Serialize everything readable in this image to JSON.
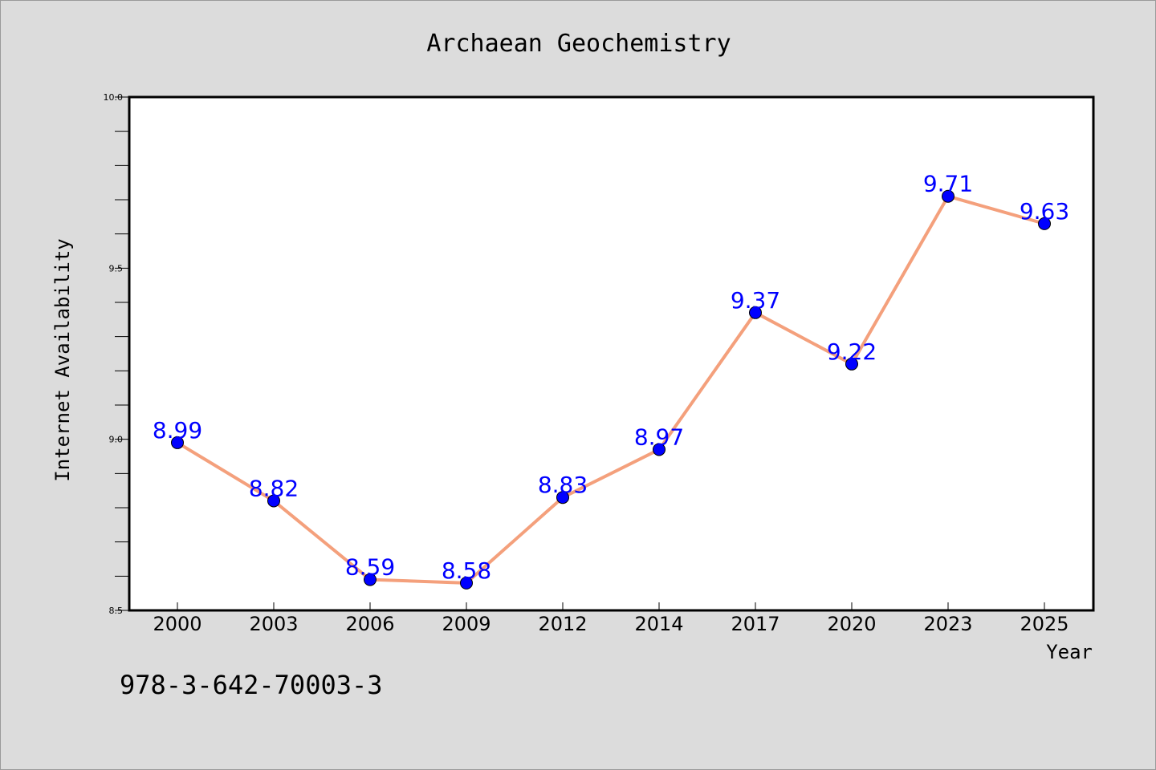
{
  "chart_data": {
    "type": "line",
    "title": "Archaean Geochemistry",
    "xlabel": "Year",
    "ylabel": "Internet Availability",
    "categories": [
      "2000",
      "2003",
      "2006",
      "2009",
      "2012",
      "2014",
      "2017",
      "2020",
      "2023",
      "2025"
    ],
    "series": [
      {
        "values": [
          8.99,
          8.82,
          8.59,
          8.58,
          8.83,
          8.97,
          9.37,
          9.22,
          9.71,
          9.63
        ],
        "line_color": "#f4a07c",
        "marker_color": "#0000ff"
      }
    ],
    "data_labels": [
      "8.99",
      "8.82",
      "8.59",
      "8.58",
      "8.83",
      "8.97",
      "9.37",
      "9.22",
      "9.71",
      "9.63"
    ],
    "ylim": [
      8.5,
      10.0
    ],
    "yticks": [
      "8.5",
      "9.0",
      "9.5",
      "10.0"
    ],
    "grid": false,
    "label_color": "#0000ff"
  },
  "footer": {
    "isbn": "978-3-642-70003-3"
  }
}
